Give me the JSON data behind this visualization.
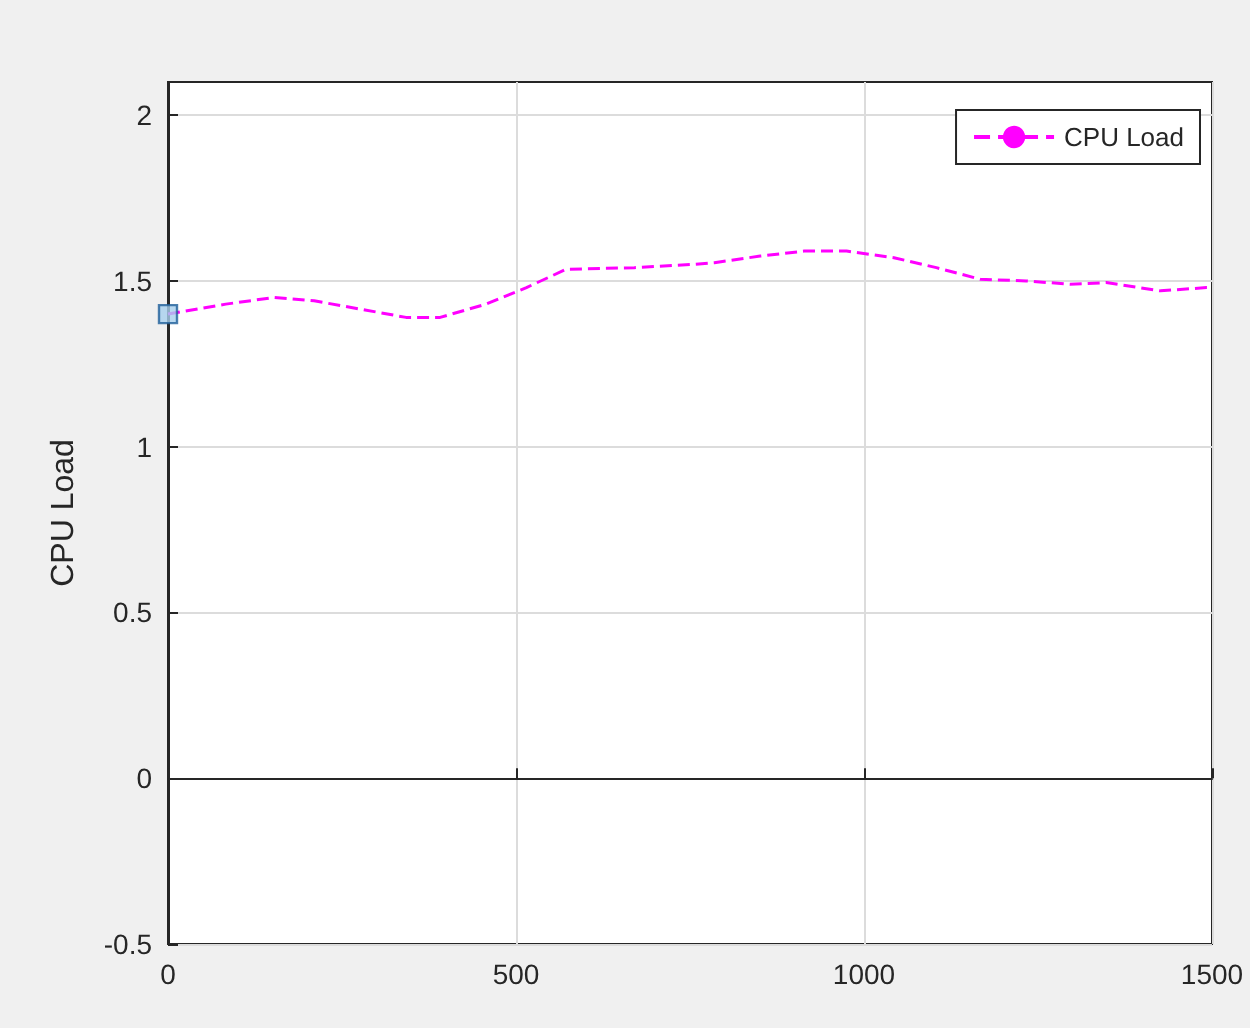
{
  "chart_data": {
    "type": "line",
    "ylabel": "CPU Load",
    "xlim": [
      0,
      1500
    ],
    "ylim": [
      -0.5,
      2.1
    ],
    "xticks": [
      0,
      500,
      1000,
      1500
    ],
    "yticks": [
      -0.5,
      0,
      0.5,
      1,
      1.5,
      2
    ],
    "grid": true,
    "legend": "top right",
    "line_style": "dashed",
    "marker": "none",
    "series": [
      {
        "name": "CPU Load",
        "color": "#ff00ff",
        "x": [
          0,
          83,
          152,
          210,
          276,
          342,
          391,
          457,
          515,
          572,
          670,
          756,
          785,
          851,
          914,
          975,
          1043,
          1104,
          1167,
          1233,
          1296,
          1348,
          1426,
          1492,
          1500
        ],
        "values": [
          1.4,
          1.43,
          1.45,
          1.44,
          1.415,
          1.39,
          1.39,
          1.43,
          1.48,
          1.535,
          1.54,
          1.55,
          1.555,
          1.575,
          1.59,
          1.59,
          1.57,
          1.54,
          1.505,
          1.5,
          1.49,
          1.495,
          1.47,
          1.48,
          1.48
        ]
      },
      {
        "type": "scatter",
        "marker": "square",
        "color": "#a8d0ee",
        "x": [
          0
        ],
        "values": [
          1.4
        ]
      }
    ]
  }
}
